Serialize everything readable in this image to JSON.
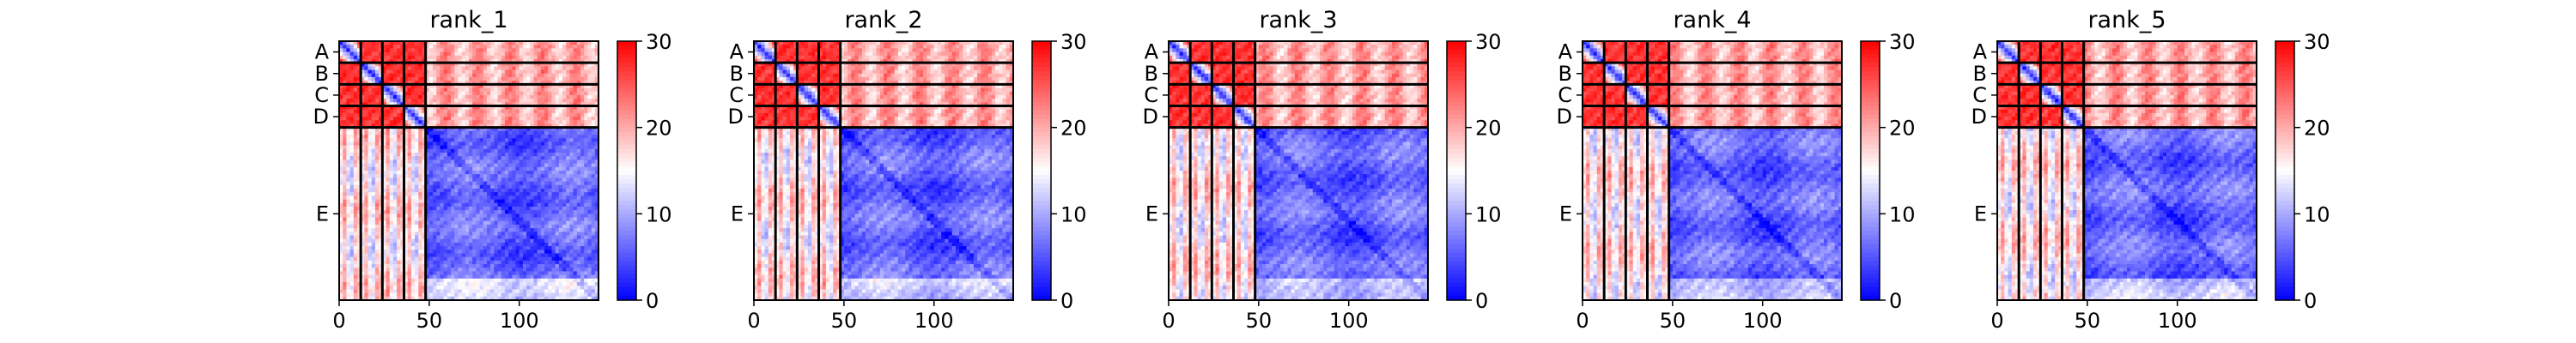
{
  "chart_data": {
    "type": "heatmap",
    "description_key": "pae_panels",
    "panels": [
      {
        "title": "rank_1"
      },
      {
        "title": "rank_2"
      },
      {
        "title": "rank_3"
      },
      {
        "title": "rank_4"
      },
      {
        "title": "rank_5"
      }
    ],
    "chains": [
      {
        "label": "A",
        "start": 0,
        "end": 12
      },
      {
        "label": "B",
        "start": 12,
        "end": 24
      },
      {
        "label": "C",
        "start": 24,
        "end": 36
      },
      {
        "label": "D",
        "start": 36,
        "end": 48
      },
      {
        "label": "E",
        "start": 48,
        "end": 144
      }
    ],
    "matrix_size": 144,
    "x_ticks": [
      0,
      50,
      100
    ],
    "colorbar": {
      "min": 0,
      "max": 30,
      "ticks": [
        0,
        10,
        20,
        30
      ],
      "colormap": "bwr",
      "low_color": "#0000ff",
      "mid_color": "#ffffff",
      "high_color": "#ff0000"
    },
    "block_values": {
      "diagonal": 3,
      "AD_offdiag": 27,
      "AD_to_E": 20,
      "E_to_AD": 16,
      "E_E": 6
    }
  }
}
